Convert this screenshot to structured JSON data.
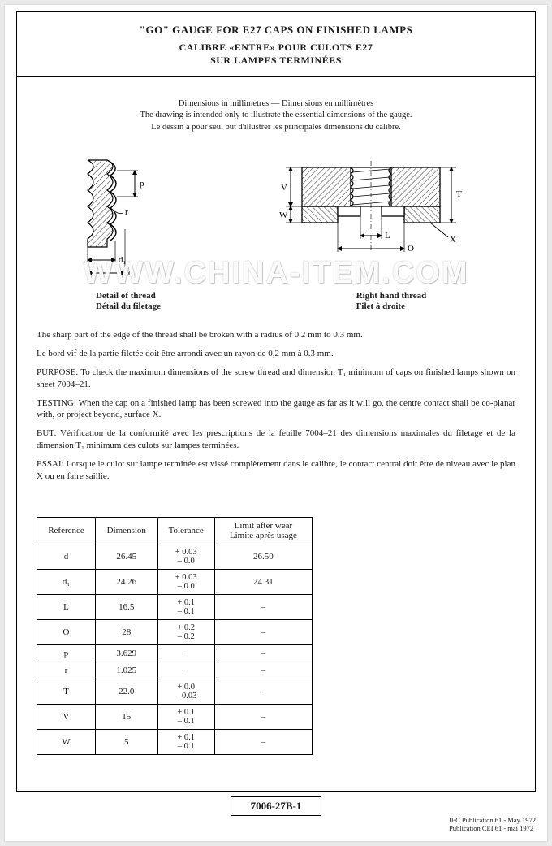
{
  "title": {
    "line1": "\"GO\" GAUGE FOR E27 CAPS ON FINISHED LAMPS",
    "line2": "CALIBRE «ENTRE» POUR CULOTS E27",
    "line3": "SUR LAMPES TERMINÉES"
  },
  "intro": {
    "l1": "Dimensions in millimetres — Dimensions en millimètres",
    "l2": "The drawing is intended only to illustrate the essential dimensions of the gauge.",
    "l3": "Le dessin a pour seul but d'illustrer les principales dimensions du calibre."
  },
  "diagrams": {
    "left": {
      "caption_en": "Detail of thread",
      "caption_fr": "Détail du filetage",
      "labels": {
        "p": "p",
        "r": "r",
        "d1": "d₁",
        "d": "d"
      }
    },
    "right": {
      "caption_en": "Right hand thread",
      "caption_fr": "Filet à droite",
      "labels": {
        "T": "T",
        "V": "V",
        "W": "W",
        "L": "L",
        "O": "O",
        "X": "X"
      }
    }
  },
  "body": {
    "p1": "The sharp part of the edge of the thread shall be broken with a radius of 0.2 mm to 0.3 mm.",
    "p2": "Le bord vif de la partie filetée doit être arrondi avec un rayon de 0,2 mm à 0.3 mm.",
    "p3": "PURPOSE: To check the maximum dimensions of the screw thread and dimension T₁ minimum of caps on finished lamps shown on sheet 7004–21.",
    "p4": "TESTING: When the cap on a finished lamp has been screwed into the gauge as far as it will go, the centre contact shall be co-planar with, or project beyond, surface X.",
    "p5": "BUT: Vérification de la conformité avec les prescriptions de la feuille 7004–21 des dimensions maximales du filetage et de la dimension T₁ minimum des culots sur lampes terminées.",
    "p6": "ESSAI: Lorsque le culot sur lampe terminée est vissé complètement dans le calibre, le contact central doit être de niveau avec le plan X ou en faire saillie."
  },
  "table": {
    "headers": {
      "ref": "Reference",
      "dim": "Dimension",
      "tol": "Tolerance",
      "wear": "Limit after wear\nLimite après usage"
    },
    "rows": [
      {
        "ref": "d",
        "dim": "26.45",
        "tol": "+ 0.03\n– 0.0",
        "wear": "26.50"
      },
      {
        "ref": "d₁",
        "dim": "24.26",
        "tol": "+ 0.03\n– 0.0",
        "wear": "24.31"
      },
      {
        "ref": "L",
        "dim": "16.5",
        "tol": "+ 0.1\n– 0.1",
        "wear": "–"
      },
      {
        "ref": "O",
        "dim": "28",
        "tol": "+ 0.2\n– 0.2",
        "wear": "–"
      },
      {
        "ref": "p",
        "dim": "3.629",
        "tol": "–",
        "wear": "–"
      },
      {
        "ref": "r",
        "dim": "1.025",
        "tol": "–",
        "wear": "–"
      },
      {
        "ref": "T",
        "dim": "22.0",
        "tol": "+ 0.0\n– 0.03",
        "wear": "–"
      },
      {
        "ref": "V",
        "dim": "15",
        "tol": "+ 0.1\n– 0.1",
        "wear": "–"
      },
      {
        "ref": "W",
        "dim": "5",
        "tol": "+ 0.1\n– 0.1",
        "wear": "–"
      }
    ]
  },
  "sheet_number": "7006-27B-1",
  "pubref": {
    "l1": "IEC Publication 61 - May 1972",
    "l2": "Publication CEI 61 - mai   1972"
  },
  "watermark": "WWW.CHINA-ITEM.COM",
  "colors": {
    "ink": "#1a1a1a",
    "paper": "#ffffff",
    "hatch": "#2a2a2a"
  }
}
